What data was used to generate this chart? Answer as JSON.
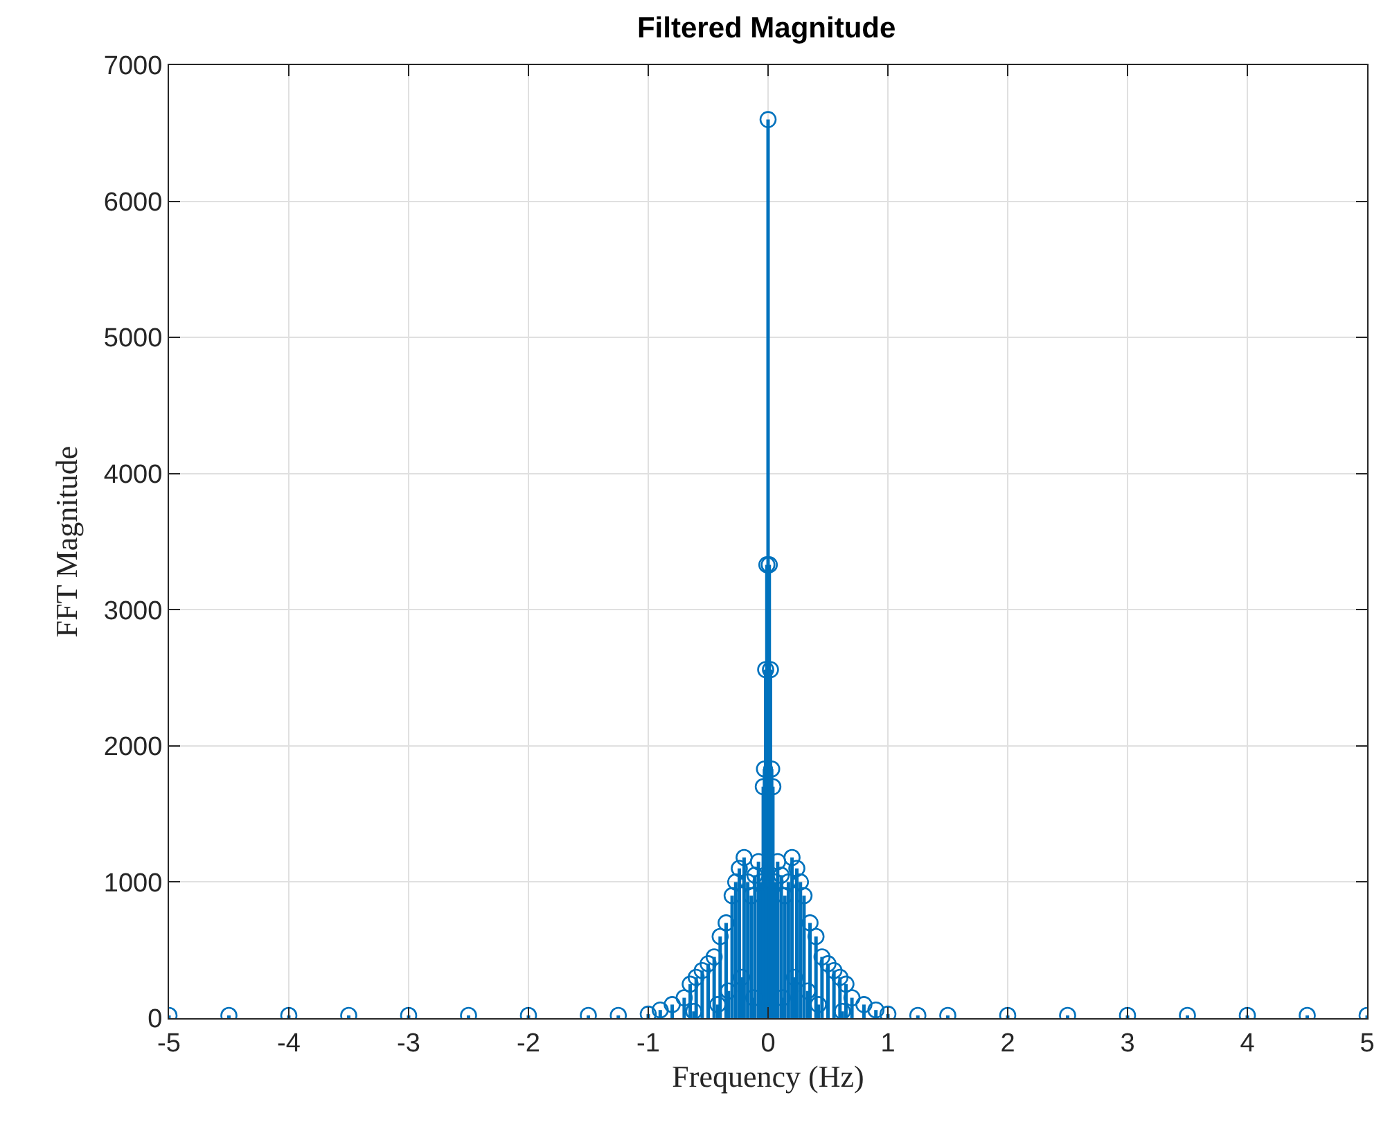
{
  "chart_data": {
    "type": "lollipop",
    "title": "Filtered Magnitude",
    "xlabel": "Frequency (Hz)",
    "ylabel": "FFT Magnitude",
    "x": [
      -5,
      -4.5,
      -4,
      -3.5,
      -3,
      -2.5,
      -2,
      -1.5,
      -1.25,
      -1,
      -0.9,
      -0.8,
      -0.7,
      -0.65,
      -0.62,
      -0.6,
      -0.55,
      -0.5,
      -0.45,
      -0.42,
      -0.4,
      -0.35,
      -0.33,
      -0.3,
      -0.27,
      -0.24,
      -0.22,
      -0.2,
      -0.17,
      -0.14,
      -0.12,
      -0.11,
      -0.08,
      -0.06,
      -0.04,
      -0.03,
      -0.02,
      -0.01,
      0,
      0.01,
      0.02,
      0.03,
      0.04,
      0.06,
      0.08,
      0.11,
      0.12,
      0.14,
      0.17,
      0.2,
      0.22,
      0.24,
      0.27,
      0.3,
      0.33,
      0.35,
      0.4,
      0.42,
      0.45,
      0.5,
      0.55,
      0.6,
      0.62,
      0.65,
      0.7,
      0.8,
      0.9,
      1,
      1.25,
      1.5,
      2,
      2.5,
      3,
      3.5,
      4,
      4.5,
      5
    ],
    "values": [
      20,
      20,
      20,
      20,
      20,
      20,
      20,
      20,
      20,
      30,
      60,
      100,
      150,
      250,
      50,
      300,
      350,
      400,
      450,
      100,
      600,
      700,
      200,
      900,
      1000,
      1100,
      300,
      1180,
      1000,
      900,
      150,
      1050,
      1150,
      1000,
      1700,
      1830,
      2560,
      3330,
      6600,
      3330,
      2560,
      1830,
      1700,
      1000,
      1150,
      1050,
      150,
      900,
      1000,
      1180,
      300,
      1100,
      1000,
      900,
      200,
      700,
      600,
      100,
      450,
      400,
      350,
      300,
      50,
      250,
      150,
      100,
      60,
      30,
      20,
      20,
      20,
      20,
      20,
      20,
      20,
      20,
      20
    ],
    "color": "#0072bd",
    "marker": "circle",
    "xlim": [
      -5,
      5
    ],
    "xticks": [
      -5,
      -4,
      -3,
      -2,
      -1,
      0,
      1,
      2,
      3,
      4,
      5
    ],
    "ylim": [
      0,
      7000
    ],
    "yticks": [
      0,
      1000,
      2000,
      3000,
      4000,
      5000,
      6000,
      7000
    ],
    "grid": true
  }
}
